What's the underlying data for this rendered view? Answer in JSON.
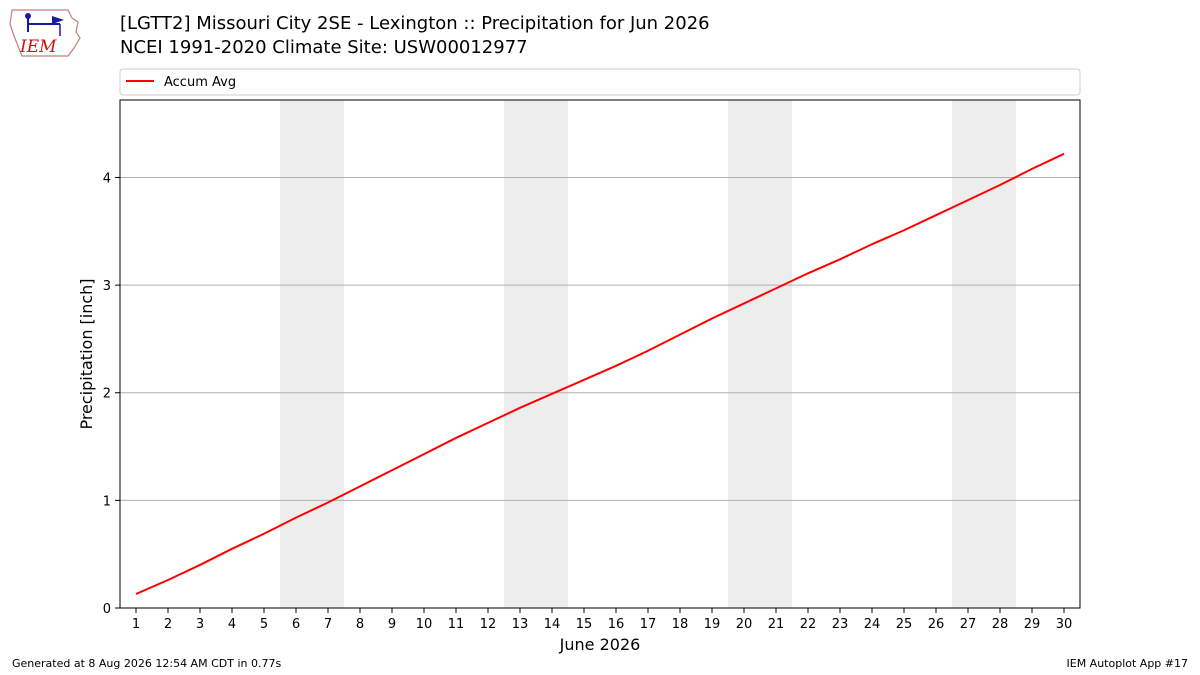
{
  "header": {
    "title_line1": "[LGTT2] Missouri City 2SE - Lexington :: Precipitation for Jun 2026",
    "title_line2": "NCEI 1991-2020 Climate Site: USW00012977",
    "logo_text": "IEM"
  },
  "footer": {
    "generated": "Generated at 8 Aug 2026 12:54 AM CDT in 0.77s",
    "app": "IEM Autoplot App #17"
  },
  "chart_data": {
    "type": "line",
    "xlabel": "June 2026",
    "ylabel": "Precipitation [inch]",
    "x": [
      1,
      2,
      3,
      4,
      5,
      6,
      7,
      8,
      9,
      10,
      11,
      12,
      13,
      14,
      15,
      16,
      17,
      18,
      19,
      20,
      21,
      22,
      23,
      24,
      25,
      26,
      27,
      28,
      29,
      30
    ],
    "xlim": [
      0.5,
      30.5
    ],
    "ylim": [
      0,
      4.72
    ],
    "yticks": [
      0,
      1,
      2,
      3,
      4
    ],
    "grid": "y",
    "legend": "top, full width",
    "weekend_shading": [
      [
        5.5,
        7.5
      ],
      [
        12.5,
        14.5
      ],
      [
        19.5,
        21.5
      ],
      [
        26.5,
        28.5
      ]
    ],
    "shade_color": "#ededed",
    "series": [
      {
        "name": "Accum Avg",
        "color": "#ff0000",
        "values": [
          0.13,
          0.26,
          0.4,
          0.55,
          0.69,
          0.84,
          0.98,
          1.13,
          1.28,
          1.43,
          1.58,
          1.72,
          1.86,
          1.99,
          2.12,
          2.25,
          2.39,
          2.54,
          2.69,
          2.83,
          2.97,
          3.11,
          3.24,
          3.38,
          3.51,
          3.65,
          3.79,
          3.93,
          4.08,
          4.22
        ]
      }
    ]
  }
}
